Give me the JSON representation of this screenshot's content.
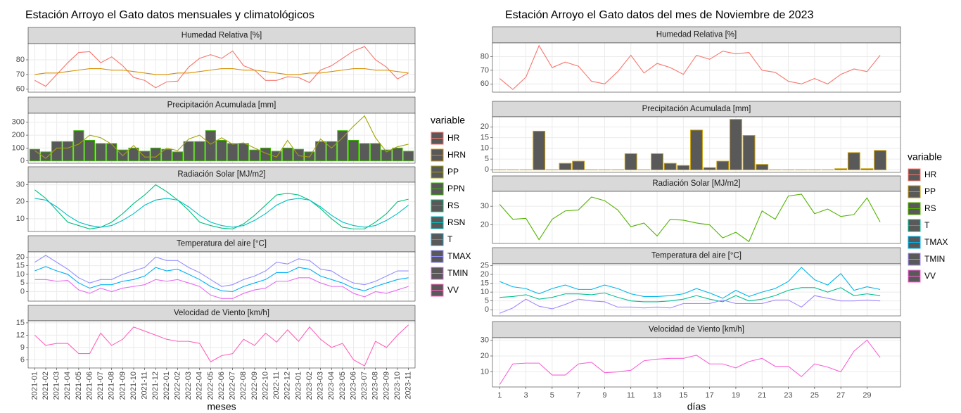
{
  "chart_data": [
    {
      "type": "line",
      "title": "Estación Arroyo el Gato datos mensuales y climatológicos",
      "x_label": "meses",
      "legend_title": "variable",
      "categories": [
        "2021-01",
        "2021-02",
        "2021-03",
        "2021-04",
        "2021-05",
        "2021-06",
        "2021-07",
        "2021-08",
        "2021-09",
        "2021-10",
        "2021-11",
        "2021-12",
        "2022-01",
        "2022-02",
        "2022-03",
        "2022-04",
        "2022-05",
        "2022-06",
        "2022-07",
        "2022-08",
        "2022-09",
        "2022-10",
        "2022-11",
        "2022-12",
        "2023-01",
        "2023-02",
        "2023-03",
        "2023-04",
        "2023-05",
        "2023-06",
        "2023-07",
        "2023-08",
        "2023-09",
        "2023-10",
        "2023-11"
      ],
      "grid": true,
      "panels": [
        {
          "title": "Humedad Relativa [%]",
          "ylim": [
            58,
            91
          ],
          "yticks": [
            60,
            70,
            80
          ],
          "series": [
            {
              "name": "HR",
              "type": "line",
              "color": "#F8766D",
              "values": [
                66,
                62,
                70,
                78,
                85,
                85.5,
                78,
                82,
                76,
                68,
                66,
                61,
                65,
                65.5,
                75,
                81,
                83.5,
                81,
                86,
                76,
                73,
                66,
                66,
                68.5,
                68,
                64.5,
                73,
                76,
                81,
                86,
                89,
                80,
                75,
                67,
                71
              ]
            },
            {
              "name": "HRN",
              "type": "line",
              "color": "#D89000",
              "values": [
                70,
                71,
                71,
                72,
                73,
                74,
                74,
                73,
                73,
                72,
                71,
                70,
                70,
                71,
                71,
                72,
                73,
                74,
                74,
                73,
                73,
                72,
                71,
                70,
                70,
                71,
                71,
                72,
                73,
                74,
                74,
                73,
                73,
                72,
                71
              ]
            }
          ]
        },
        {
          "title": "Precipitación Acumulada [mm]",
          "ylim": [
            -18,
            370
          ],
          "yticks": [
            0,
            100,
            200,
            300
          ],
          "series": [
            {
              "name": "PP",
              "type": "line",
              "color": "#A3A500",
              "values": [
                80,
                20,
                100,
                100,
                130,
                200,
                180,
                130,
                40,
                120,
                30,
                30,
                100,
                80,
                170,
                200,
                130,
                180,
                130,
                140,
                100,
                60,
                30,
                160,
                40,
                30,
                170,
                100,
                180,
                270,
                350,
                180,
                70,
                110,
                130
              ]
            },
            {
              "name": "PPN",
              "type": "bar",
              "color": "#39B600",
              "values": [
                90,
                70,
                150,
                150,
                235,
                160,
                135,
                135,
                85,
                100,
                75,
                100,
                90,
                70,
                150,
                150,
                235,
                160,
                135,
                135,
                85,
                100,
                75,
                100,
                90,
                70,
                150,
                150,
                235,
                160,
                135,
                135,
                85,
                100,
                75
              ]
            }
          ]
        },
        {
          "title": "Radiación Solar [MJ/m2]",
          "ylim": [
            2.5,
            31.5
          ],
          "yticks": [
            10,
            20,
            30
          ],
          "series": [
            {
              "name": "RS",
              "type": "line",
              "color": "#00BF7D",
              "values": [
                27,
                22,
                15,
                8,
                6,
                4,
                5,
                8,
                13,
                19,
                24,
                30,
                26,
                21,
                15,
                8,
                6,
                4.5,
                4,
                7,
                12,
                18,
                24,
                25,
                24,
                21,
                16,
                10,
                5,
                4,
                4,
                8,
                13,
                20,
                21.5
              ]
            },
            {
              "name": "RSN",
              "type": "line",
              "color": "#00BFC4",
              "values": [
                22,
                21,
                17,
                12,
                8,
                6,
                5,
                6,
                9,
                13,
                18,
                21,
                22,
                21,
                17,
                12,
                8,
                6,
                5,
                6,
                9,
                13,
                18,
                21,
                22,
                21,
                17,
                12,
                8,
                6,
                5,
                6,
                9,
                13,
                18
              ]
            }
          ]
        },
        {
          "title": "Temperatura del aire [°C]",
          "ylim": [
            -5.5,
            23
          ],
          "yticks": [
            0,
            5,
            10,
            15,
            20
          ],
          "series": [
            {
              "name": "T",
              "type": "line",
              "color": "#00B0F6",
              "values": [
                12,
                14.5,
                12,
                10,
                5,
                2,
                4,
                4,
                6,
                7,
                9,
                14,
                12,
                13,
                10,
                7,
                3,
                0.5,
                0,
                3,
                5,
                7,
                11,
                11,
                14,
                13,
                9,
                7,
                5,
                2,
                0.5,
                3,
                5,
                7,
                8
              ]
            },
            {
              "name": "TMAX",
              "type": "line",
              "color": "#9590FF",
              "values": [
                17,
                21,
                17,
                13,
                8,
                5,
                7,
                7,
                10,
                12,
                14,
                20,
                18,
                18,
                14,
                11,
                7,
                3,
                4,
                7,
                9,
                12,
                17,
                16,
                19,
                18,
                13,
                12,
                8,
                5,
                4,
                6,
                9,
                12,
                12
              ]
            },
            {
              "name": "TMIN",
              "type": "line",
              "color": "#E76BF3",
              "values": [
                7,
                7,
                6,
                6.5,
                1,
                -1,
                2,
                0,
                2,
                3,
                4,
                7,
                6,
                7,
                5,
                3,
                -2,
                -4,
                -4,
                -1,
                1,
                2,
                6,
                6,
                8,
                8,
                5,
                3,
                3,
                -1,
                -3,
                0,
                -1,
                1,
                3
              ]
            }
          ]
        },
        {
          "title": "Velocidad de Viento [km/h]",
          "ylim": [
            4,
            15.5
          ],
          "yticks": [
            6,
            9,
            12,
            15
          ],
          "series": [
            {
              "name": "VV",
              "type": "line",
              "color": "#FF62BC",
              "values": [
                12,
                9.5,
                10,
                10,
                7.5,
                7.5,
                12.5,
                9.5,
                11,
                14,
                13,
                12,
                11,
                10.5,
                10.5,
                10,
                5.5,
                7,
                7.5,
                11,
                9.5,
                12.5,
                10.3,
                13.3,
                10.5,
                14,
                11,
                9,
                10,
                6,
                4.5,
                10.5,
                9,
                12,
                14.5
              ]
            }
          ]
        }
      ]
    },
    {
      "type": "line",
      "title": "Estación Arroyo el Gato datos del mes de Noviembre de 2023",
      "x_label": "días",
      "legend_title": "variable",
      "x": [
        1,
        2,
        3,
        4,
        5,
        6,
        7,
        8,
        9,
        10,
        11,
        12,
        13,
        14,
        15,
        16,
        17,
        18,
        19,
        20,
        21,
        22,
        23,
        24,
        25,
        26,
        27,
        28,
        29,
        30
      ],
      "xlim": [
        0.45,
        31.55
      ],
      "xticks": [
        1,
        3,
        5,
        7,
        9,
        11,
        13,
        15,
        17,
        19,
        21,
        23,
        25,
        27,
        29
      ],
      "grid": true,
      "panels": [
        {
          "title": "Humedad Relativa [%]",
          "ylim": [
            54,
            90
          ],
          "yticks": [
            60,
            70,
            80
          ],
          "series": [
            {
              "name": "HR",
              "type": "line",
              "color": "#F8766D",
              "values": [
                64,
                56,
                65,
                88,
                72,
                76,
                73,
                62,
                60,
                69,
                81,
                68,
                75,
                72,
                67,
                81,
                78,
                84,
                82,
                83,
                70,
                68.5,
                62,
                60,
                64,
                60,
                67,
                71,
                69,
                81
              ]
            }
          ]
        },
        {
          "title": "Precipitación Acumulada [mm]",
          "ylim": [
            -1.2,
            24.7
          ],
          "yticks": [
            0,
            5,
            10,
            15,
            20
          ],
          "series": [
            {
              "name": "PP",
              "type": "bar",
              "color": "#C49A00",
              "values": [
                0,
                0,
                0,
                18,
                0,
                3,
                4,
                0,
                0,
                0,
                7.5,
                0,
                7.5,
                3,
                2,
                18.5,
                1,
                4,
                23.5,
                16,
                2.5,
                0,
                0,
                0,
                0,
                0,
                0.5,
                8,
                0.5,
                9
              ]
            }
          ]
        },
        {
          "title": "Radiación Solar [MJ/m2]",
          "ylim": [
            10,
            38
          ],
          "yticks": [
            20,
            30
          ],
          "series": [
            {
              "name": "RS",
              "type": "line",
              "color": "#53B400",
              "values": [
                31,
                23,
                23.5,
                12,
                23,
                27.5,
                28,
                35,
                33,
                28,
                19,
                21,
                14,
                23,
                22.5,
                21,
                20,
                13,
                16,
                11,
                27.5,
                23,
                35.5,
                36.5,
                26,
                28.5,
                24.5,
                25.5,
                34.5,
                21.5
              ]
            }
          ]
        },
        {
          "title": "Temperatura del aire [°C]",
          "ylim": [
            -3.5,
            26
          ],
          "yticks": [
            0,
            5,
            10,
            15,
            20,
            25
          ],
          "series": [
            {
              "name": "T",
              "type": "line",
              "color": "#00C094",
              "values": [
                7,
                7.5,
                8.5,
                6,
                7,
                9,
                9,
                8.5,
                9.5,
                7,
                5,
                4.5,
                4.5,
                5,
                6,
                8,
                6,
                4.5,
                8,
                5,
                6,
                8,
                11,
                12.5,
                12.5,
                10,
                12.5,
                8,
                9,
                8
              ]
            },
            {
              "name": "TMAX",
              "type": "line",
              "color": "#00B6EB",
              "values": [
                16,
                13,
                12,
                9,
                12,
                14,
                11.5,
                11.5,
                14,
                12,
                9,
                7.5,
                7.5,
                8,
                9,
                12,
                9.5,
                6.5,
                11,
                7.5,
                10,
                12,
                16,
                24,
                17,
                14,
                20.5,
                11,
                13,
                11.5
              ]
            },
            {
              "name": "TMIN",
              "type": "line",
              "color": "#A58AFF",
              "values": [
                -2,
                1,
                6,
                2,
                0.5,
                3,
                6,
                5,
                4.5,
                1.5,
                1.5,
                1,
                1.5,
                1,
                3.5,
                3.5,
                3.5,
                5.5,
                3.5,
                3.5,
                3.5,
                5.5,
                5.5,
                1.5,
                8,
                6.5,
                5,
                5,
                5.5,
                5
              ]
            }
          ]
        },
        {
          "title": "Velocidad de Viento [km/h]",
          "ylim": [
            0.5,
            31.5
          ],
          "yticks": [
            10,
            20,
            30
          ],
          "series": [
            {
              "name": "VV",
              "type": "line",
              "color": "#FB61D7",
              "values": [
                2,
                15,
                15.5,
                15.5,
                8,
                8,
                15,
                16,
                9.5,
                10,
                11,
                17,
                18,
                18.5,
                18.5,
                20.5,
                15,
                15,
                12.5,
                16.5,
                18.5,
                13.5,
                13.5,
                7,
                15,
                13,
                10,
                23,
                30,
                19
              ]
            }
          ]
        }
      ]
    }
  ]
}
